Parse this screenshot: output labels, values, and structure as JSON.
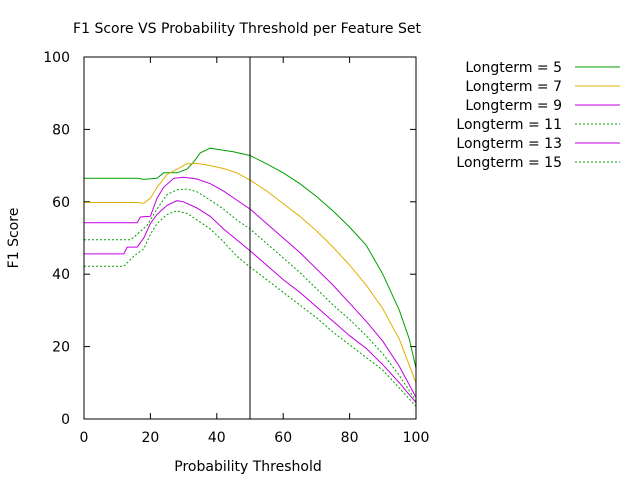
{
  "chart_data": {
    "type": "line",
    "title": "F1 Score VS Probability Threshold per Feature Set",
    "xlabel": "Probability Threshold",
    "ylabel": "F1 Score",
    "xlim": [
      0,
      100
    ],
    "ylim": [
      0,
      100
    ],
    "xticks": [
      0,
      20,
      40,
      60,
      80,
      100
    ],
    "yticks": [
      0,
      20,
      40,
      60,
      80,
      100
    ],
    "grid": false,
    "legend_position": "outside-right",
    "reference_line_x": 50,
    "series": [
      {
        "name": "Longterm = 5",
        "color": "#00a000",
        "dash": "solid",
        "points": [
          [
            0,
            66.5
          ],
          [
            10,
            66.5
          ],
          [
            16,
            66.5
          ],
          [
            18,
            66.2
          ],
          [
            22,
            66.5
          ],
          [
            24,
            68
          ],
          [
            28,
            68
          ],
          [
            31,
            69
          ],
          [
            33,
            71
          ],
          [
            35,
            73.5
          ],
          [
            38,
            74.8
          ],
          [
            40,
            74.5
          ],
          [
            45,
            73.8
          ],
          [
            50,
            72.8
          ],
          [
            55,
            70.5
          ],
          [
            60,
            68
          ],
          [
            65,
            65
          ],
          [
            70,
            61.5
          ],
          [
            75,
            57.5
          ],
          [
            80,
            53
          ],
          [
            85,
            48
          ],
          [
            90,
            40
          ],
          [
            95,
            30
          ],
          [
            98,
            22
          ],
          [
            100,
            14
          ]
        ]
      },
      {
        "name": "Longterm = 7",
        "color": "#e0b000",
        "dash": "solid",
        "points": [
          [
            0,
            59.8
          ],
          [
            10,
            59.8
          ],
          [
            16,
            59.8
          ],
          [
            18,
            59.6
          ],
          [
            20,
            61
          ],
          [
            22,
            64
          ],
          [
            25,
            67.5
          ],
          [
            28,
            69
          ],
          [
            31,
            70.5
          ],
          [
            34,
            70.6
          ],
          [
            38,
            70
          ],
          [
            42,
            69.2
          ],
          [
            46,
            68
          ],
          [
            50,
            66
          ],
          [
            55,
            63
          ],
          [
            60,
            59.5
          ],
          [
            65,
            56
          ],
          [
            70,
            52
          ],
          [
            75,
            47.5
          ],
          [
            80,
            42.5
          ],
          [
            85,
            37
          ],
          [
            90,
            30.5
          ],
          [
            95,
            22
          ],
          [
            100,
            10
          ]
        ]
      },
      {
        "name": "Longterm = 9",
        "color": "#c000e0",
        "dash": "solid",
        "points": [
          [
            0,
            54.2
          ],
          [
            10,
            54.2
          ],
          [
            16,
            54.2
          ],
          [
            17,
            55.8
          ],
          [
            20,
            56
          ],
          [
            22,
            61
          ],
          [
            24,
            64
          ],
          [
            27,
            66.5
          ],
          [
            30,
            66.8
          ],
          [
            34,
            66.3
          ],
          [
            38,
            65
          ],
          [
            42,
            63
          ],
          [
            46,
            60.5
          ],
          [
            50,
            58
          ],
          [
            55,
            54
          ],
          [
            60,
            50
          ],
          [
            65,
            46
          ],
          [
            70,
            41.5
          ],
          [
            75,
            37
          ],
          [
            80,
            32
          ],
          [
            85,
            27
          ],
          [
            90,
            21.5
          ],
          [
            95,
            14.5
          ],
          [
            100,
            6
          ]
        ]
      },
      {
        "name": "Longterm = 11",
        "color": "#00a000",
        "dash": "dotted",
        "points": [
          [
            0,
            49.5
          ],
          [
            10,
            49.5
          ],
          [
            14,
            49.5
          ],
          [
            16,
            51
          ],
          [
            19,
            53.5
          ],
          [
            22,
            58
          ],
          [
            25,
            62
          ],
          [
            28,
            63.3
          ],
          [
            31,
            63.5
          ],
          [
            34,
            62.8
          ],
          [
            38,
            60.5
          ],
          [
            42,
            58
          ],
          [
            46,
            55
          ],
          [
            50,
            52.5
          ],
          [
            55,
            48.5
          ],
          [
            60,
            44.5
          ],
          [
            65,
            40.5
          ],
          [
            70,
            36
          ],
          [
            75,
            31.5
          ],
          [
            80,
            27.5
          ],
          [
            85,
            23
          ],
          [
            90,
            18
          ],
          [
            95,
            12
          ],
          [
            100,
            5
          ]
        ]
      },
      {
        "name": "Longterm = 13",
        "color": "#c000e0",
        "dash": "solid",
        "points": [
          [
            0,
            45.6
          ],
          [
            8,
            45.6
          ],
          [
            12,
            45.6
          ],
          [
            13,
            47.5
          ],
          [
            16,
            47.5
          ],
          [
            18,
            50
          ],
          [
            20,
            54
          ],
          [
            22,
            56.5
          ],
          [
            25,
            59
          ],
          [
            28,
            60.3
          ],
          [
            30,
            60
          ],
          [
            34,
            58.3
          ],
          [
            38,
            56
          ],
          [
            42,
            52.5
          ],
          [
            46,
            49.5
          ],
          [
            50,
            46.5
          ],
          [
            55,
            42.5
          ],
          [
            60,
            38.5
          ],
          [
            65,
            35
          ],
          [
            70,
            31
          ],
          [
            75,
            27
          ],
          [
            80,
            23
          ],
          [
            85,
            19.5
          ],
          [
            90,
            15
          ],
          [
            95,
            10
          ],
          [
            100,
            4.5
          ]
        ]
      },
      {
        "name": "Longterm = 15",
        "color": "#00a000",
        "dash": "dotted",
        "points": [
          [
            0,
            42.2
          ],
          [
            8,
            42.2
          ],
          [
            12,
            42.2
          ],
          [
            15,
            45
          ],
          [
            18,
            47
          ],
          [
            20,
            51
          ],
          [
            22,
            54
          ],
          [
            25,
            56.5
          ],
          [
            28,
            57.5
          ],
          [
            31,
            56.8
          ],
          [
            34,
            55
          ],
          [
            38,
            52.5
          ],
          [
            42,
            49
          ],
          [
            46,
            45
          ],
          [
            50,
            42
          ],
          [
            55,
            38.5
          ],
          [
            60,
            35
          ],
          [
            65,
            31.5
          ],
          [
            70,
            28
          ],
          [
            75,
            24
          ],
          [
            80,
            20.5
          ],
          [
            85,
            17
          ],
          [
            90,
            13.5
          ],
          [
            95,
            8.5
          ],
          [
            100,
            3.5
          ]
        ]
      }
    ]
  }
}
